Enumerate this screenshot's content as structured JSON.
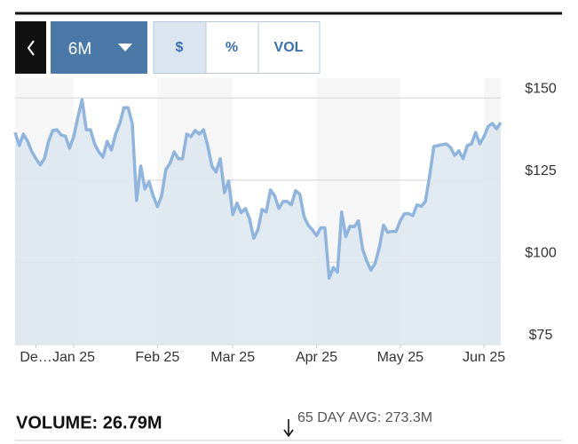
{
  "controls": {
    "range": "6M",
    "units": [
      "$",
      "%",
      "VOL"
    ]
  },
  "volume": {
    "label": "VOLUME: 26.79M",
    "average": "65 DAY AVG: 273.3M"
  },
  "chart_data": {
    "type": "area",
    "color": "#8fb4de",
    "fill": "#dde6ef",
    "grid": true,
    "xlim": [
      0,
      116
    ],
    "xticks": [
      {
        "value": 5,
        "label": "De…"
      },
      {
        "value": 14,
        "label": "Jan 25"
      },
      {
        "value": 34,
        "label": "Feb 25"
      },
      {
        "value": 52,
        "label": "Mar 25"
      },
      {
        "value": 72,
        "label": "Apr 25"
      },
      {
        "value": 92,
        "label": "May 25"
      },
      {
        "value": 112,
        "label": "Jun 25"
      }
    ],
    "ylim": [
      75,
      156
    ],
    "yticks": [
      {
        "value": 75,
        "label": "$75"
      },
      {
        "value": 100,
        "label": "$100"
      },
      {
        "value": 125,
        "label": "$125"
      },
      {
        "value": 150,
        "label": "$150"
      }
    ],
    "values": [
      139.5,
      135.5,
      139.0,
      136.8,
      133.6,
      131.5,
      129.6,
      131.5,
      136.8,
      140.1,
      140.3,
      138.7,
      138.4,
      134.7,
      138.2,
      144.1,
      149.5,
      140.3,
      140.3,
      136.0,
      133.6,
      132.0,
      136.8,
      134.1,
      139.0,
      142.2,
      147.0,
      147.0,
      142.2,
      118.8,
      129.3,
      122.3,
      124.5,
      120.2,
      116.9,
      120.2,
      128.2,
      130.1,
      133.6,
      131.5,
      131.5,
      139.0,
      138.2,
      140.1,
      139.0,
      140.3,
      135.5,
      129.3,
      127.4,
      131.5,
      121.2,
      124.7,
      114.5,
      118.0,
      115.1,
      116.4,
      113.2,
      107.3,
      109.9,
      116.1,
      115.3,
      122.0,
      120.2,
      116.4,
      118.5,
      118.5,
      117.5,
      121.8,
      120.7,
      114.0,
      111.3,
      109.9,
      108.1,
      110.5,
      110.5,
      95.2,
      98.4,
      97.0,
      115.3,
      107.8,
      111.0,
      110.8,
      112.6,
      104.0,
      100.3,
      97.6,
      99.7,
      104.6,
      111.3,
      109.1,
      109.4,
      109.4,
      112.6,
      114.8,
      114.8,
      114.2,
      117.5,
      117.0,
      118.5,
      126.1,
      135.2,
      135.5,
      135.8,
      136.0,
      134.9,
      132.5,
      133.9,
      131.5,
      135.5,
      136.0,
      139.5,
      136.0,
      138.2,
      141.4,
      142.2,
      140.6,
      142.5
    ]
  }
}
